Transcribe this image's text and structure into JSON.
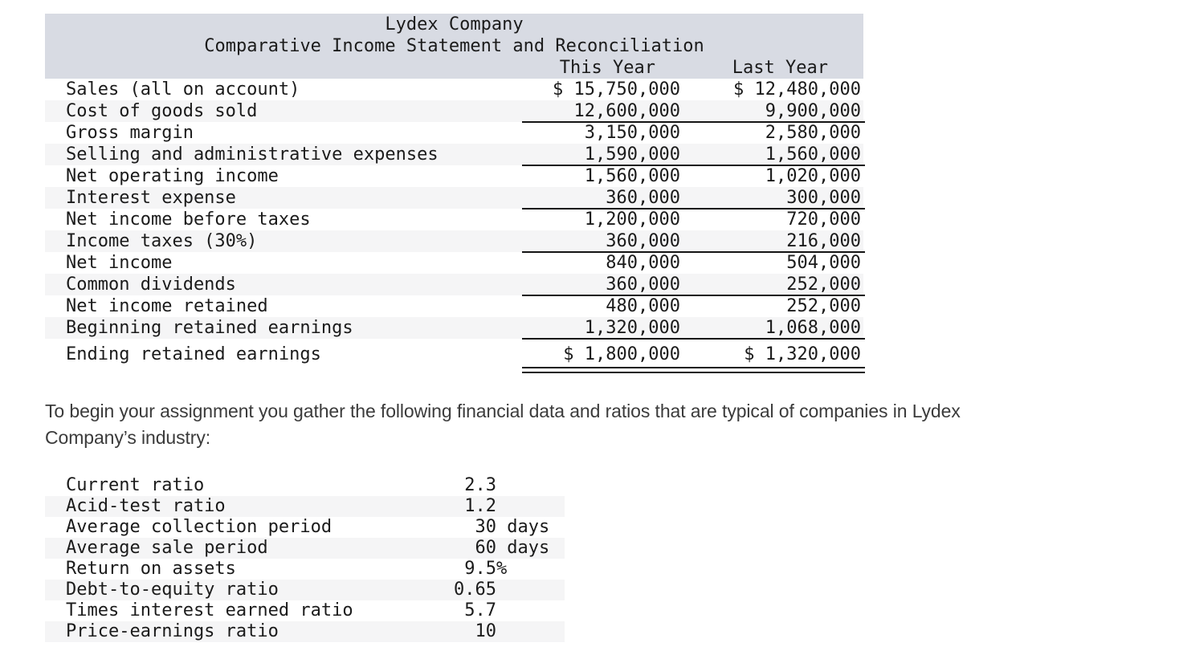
{
  "income_statement": {
    "title": "Lydex Company",
    "subtitle": "Comparative Income Statement and Reconciliation",
    "columns": [
      "This Year",
      "Last Year"
    ],
    "rows": [
      {
        "label": "Sales (all on account)",
        "this_year": "$ 15,750,000",
        "last_year": "$ 12,480,000"
      },
      {
        "label": "Cost of goods sold",
        "this_year": "12,600,000",
        "last_year": "9,900,000"
      },
      {
        "label": "Gross margin",
        "this_year": "3,150,000",
        "last_year": "2,580,000"
      },
      {
        "label": "Selling and administrative expenses",
        "this_year": "1,590,000",
        "last_year": "1,560,000"
      },
      {
        "label": "Net operating income",
        "this_year": "1,560,000",
        "last_year": "1,020,000"
      },
      {
        "label": "Interest expense",
        "this_year": "360,000",
        "last_year": "300,000"
      },
      {
        "label": "Net income before taxes",
        "this_year": "1,200,000",
        "last_year": "720,000"
      },
      {
        "label": "Income taxes (30%)",
        "this_year": "360,000",
        "last_year": "216,000"
      },
      {
        "label": "Net income",
        "this_year": "840,000",
        "last_year": "504,000"
      },
      {
        "label": "Common dividends",
        "this_year": "360,000",
        "last_year": "252,000"
      },
      {
        "label": "Net income retained",
        "this_year": "480,000",
        "last_year": "252,000"
      },
      {
        "label": "Beginning retained earnings",
        "this_year": "1,320,000",
        "last_year": "1,068,000"
      },
      {
        "label": "Ending retained earnings",
        "this_year": "$ 1,800,000",
        "last_year": "$ 1,320,000"
      }
    ]
  },
  "paragraph": {
    "lines": [
      "To begin your assignment you gather the following financial data and ratios that are typical of companies in Lydex",
      "Company’s industry:"
    ]
  },
  "ratios_table": {
    "rows": [
      {
        "label": "Current ratio",
        "value": " 2.3"
      },
      {
        "label": "Acid-test ratio",
        "value": " 1.2"
      },
      {
        "label": "Average collection period",
        "value": "  30 days"
      },
      {
        "label": "Average sale period",
        "value": "  60 days"
      },
      {
        "label": "Return on assets",
        "value": " 9.5%"
      },
      {
        "label": "Debt-to-equity ratio",
        "value": "0.65"
      },
      {
        "label": "Times interest earned ratio",
        "value": " 5.7"
      },
      {
        "label": "Price-earnings ratio",
        "value": "  10"
      }
    ]
  },
  "colors": {
    "header_band": "#d8dbe3",
    "row_stripe": "#f5f5f6",
    "rule": "#141414",
    "table_text": "#1b1b1b",
    "paragraph_text": "#3b3b3b"
  }
}
